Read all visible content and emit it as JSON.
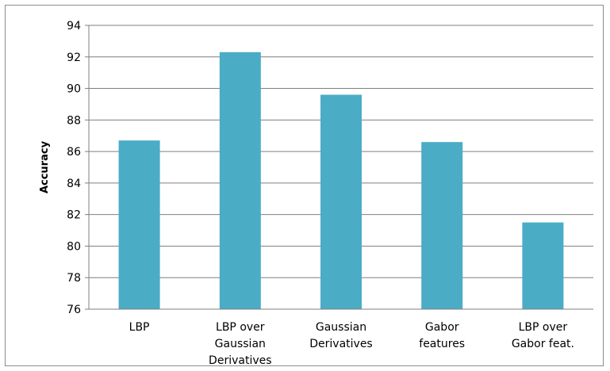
{
  "chart_data": {
    "type": "bar",
    "categories": [
      [
        "LBP"
      ],
      [
        "LBP over",
        "Gaussian",
        "Derivatives"
      ],
      [
        "Gaussian",
        "Derivatives"
      ],
      [
        "Gabor",
        "features"
      ],
      [
        "LBP over",
        "Gabor feat."
      ]
    ],
    "values": [
      86.7,
      92.3,
      89.6,
      86.6,
      81.5
    ],
    "ylabel": "Accuracy",
    "xlabel": "",
    "title": "",
    "ylim": [
      76,
      94
    ],
    "yticks": [
      76,
      78,
      80,
      82,
      84,
      86,
      88,
      90,
      92,
      94
    ],
    "grid": true,
    "legend": "none",
    "bar_color": "#4bacc6",
    "grid_color": "#7f7f7f"
  }
}
